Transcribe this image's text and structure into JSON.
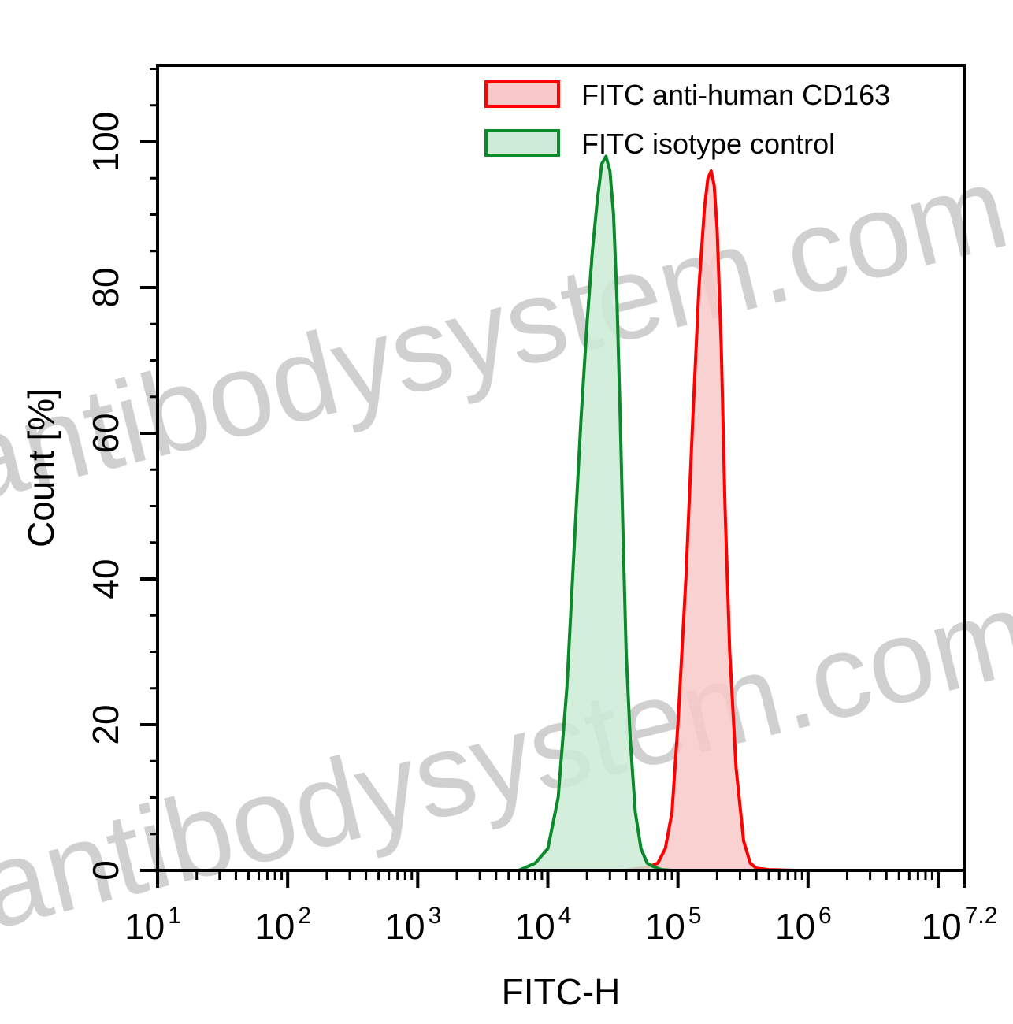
{
  "watermark": "antibodysystem.com",
  "chart_data": {
    "type": "area",
    "xlabel": "FITC-H",
    "ylabel": "Count  [%]",
    "x_scale": "log",
    "xlim": [
      10,
      15848932
    ],
    "ylim": [
      0,
      100
    ],
    "x_ticks": [
      {
        "base": "10",
        "exp": "1",
        "value": 10
      },
      {
        "base": "10",
        "exp": "2",
        "value": 100
      },
      {
        "base": "10",
        "exp": "3",
        "value": 1000
      },
      {
        "base": "10",
        "exp": "4",
        "value": 10000
      },
      {
        "base": "10",
        "exp": "5",
        "value": 100000
      },
      {
        "base": "10",
        "exp": "6",
        "value": 1000000
      },
      {
        "base": "10",
        "exp": "7.2",
        "value": 15848932
      }
    ],
    "y_ticks": [
      "0",
      "20",
      "40",
      "60",
      "80",
      "100"
    ],
    "legend_position": "top-right",
    "series": [
      {
        "name": "FITC anti-human CD163",
        "color": "#ff0000",
        "fill": "#f9c9c9",
        "x": [
          40000,
          60000,
          70000,
          80000,
          90000,
          100000,
          115000,
          130000,
          145000,
          160000,
          170000,
          180000,
          190000,
          200000,
          215000,
          230000,
          250000,
          280000,
          320000,
          360000,
          400000,
          500000,
          800000
        ],
        "y": [
          0,
          0.5,
          1,
          3,
          8,
          20,
          40,
          62,
          80,
          91,
          95,
          96,
          94,
          88,
          72,
          50,
          30,
          14,
          4,
          1,
          0.3,
          0.1,
          0
        ]
      },
      {
        "name": "FITC  isotype control",
        "color": "#0a8a2a",
        "fill": "#cdebd6",
        "x": [
          6000,
          8000,
          10000,
          12000,
          14000,
          16000,
          18000,
          20000,
          22000,
          24000,
          26000,
          28000,
          30000,
          32000,
          34000,
          36000,
          38000,
          40000,
          43000,
          47000,
          52000,
          58000,
          65000,
          75000,
          90000
        ],
        "y": [
          0,
          1,
          3,
          10,
          25,
          45,
          62,
          75,
          85,
          92,
          97,
          98,
          96,
          90,
          78,
          62,
          45,
          30,
          18,
          8,
          3,
          1,
          0.5,
          0.1,
          0
        ]
      }
    ]
  }
}
